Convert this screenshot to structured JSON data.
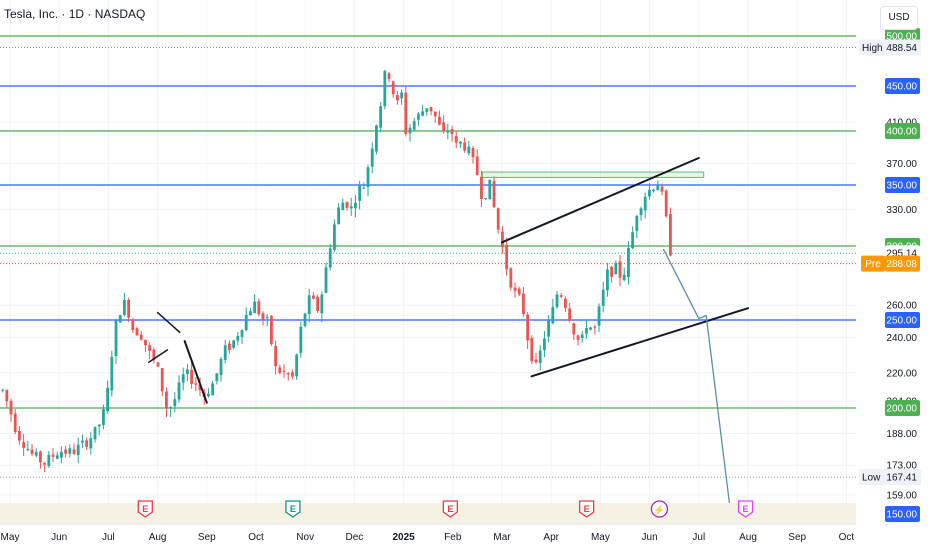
{
  "header": {
    "title": "Tesla, Inc. · 1D · NASDAQ",
    "currency": "USD"
  },
  "chart_data": {
    "type": "candlestick",
    "ylim": [
      150,
      500
    ],
    "y_ticks": [
      500.0,
      410.0,
      370.0,
      330.0,
      260.0,
      240.0,
      220.0,
      204.0,
      188.0,
      173.0,
      159.0
    ],
    "x_labels": [
      {
        "label": "May",
        "month": 0
      },
      {
        "label": "Jun",
        "month": 1
      },
      {
        "label": "Jul",
        "month": 2
      },
      {
        "label": "Aug",
        "month": 3
      },
      {
        "label": "Sep",
        "month": 4
      },
      {
        "label": "Oct",
        "month": 5
      },
      {
        "label": "Nov",
        "month": 6
      },
      {
        "label": "Dec",
        "month": 7
      },
      {
        "label": "2025",
        "month": 8
      },
      {
        "label": "Feb",
        "month": 9
      },
      {
        "label": "Mar",
        "month": 10
      },
      {
        "label": "Apr",
        "month": 11
      },
      {
        "label": "May",
        "month": 12
      },
      {
        "label": "Jun",
        "month": 13
      },
      {
        "label": "Jul",
        "month": 14
      },
      {
        "label": "Aug",
        "month": 15
      },
      {
        "label": "Sep",
        "month": 16
      },
      {
        "label": "Oct",
        "month": 17
      }
    ],
    "levels": [
      {
        "price": 500.0,
        "label": "500.00",
        "color": "#4caf50"
      },
      {
        "price": 450.0,
        "label": "450.00",
        "color": "#2962ff"
      },
      {
        "price": 400.0,
        "label": "400.00",
        "color": "#4caf50"
      },
      {
        "price": 350.0,
        "label": "350.00",
        "color": "#2962ff"
      },
      {
        "price": 300.0,
        "label": "300.00",
        "color": "#4caf50"
      },
      {
        "price": 250.0,
        "label": "250.00",
        "color": "#2962ff"
      },
      {
        "price": 200.0,
        "label": "200.00",
        "color": "#4caf50"
      },
      {
        "price": 150.0,
        "label": "150.00",
        "color": "#2962ff"
      }
    ],
    "markers": {
      "high": {
        "label": "High",
        "value": "488.54",
        "price": 488.54
      },
      "low": {
        "label": "Low",
        "value": "167.41",
        "price": 167.41
      },
      "last": {
        "value": "295.14",
        "price": 295.14,
        "color": "#26a69a"
      },
      "pre": {
        "label": "Pre",
        "value": "288.08",
        "price": 288.08,
        "color": "#ff9800"
      }
    },
    "supply_zone": {
      "from_month": 9.6,
      "to_month": 14.1,
      "top": 362,
      "bottom": 357
    },
    "channel": {
      "upper": [
        [
          10.0,
          303
        ],
        [
          14.0,
          375
        ]
      ],
      "lower": [
        [
          10.6,
          218
        ],
        [
          15.0,
          258
        ]
      ]
    },
    "mini_channels": [
      {
        "upper": [
          [
            3.0,
            255
          ],
          [
            3.45,
            243
          ]
        ],
        "lower": [
          [
            2.82,
            226
          ],
          [
            3.2,
            233
          ]
        ]
      },
      {
        "line": [
          [
            3.55,
            238
          ],
          [
            4.0,
            203
          ]
        ]
      }
    ],
    "projection": [
      [
        13.28,
        298
      ],
      [
        14.0,
        251
      ],
      [
        14.15,
        253
      ],
      [
        14.65,
        150
      ]
    ],
    "event_badges": [
      {
        "label": "E",
        "month": 2.75,
        "color": "#f23645"
      },
      {
        "label": "E",
        "month": 5.75,
        "color": "#089981"
      },
      {
        "label": "E",
        "month": 8.95,
        "color": "#f23645"
      },
      {
        "label": "E",
        "month": 11.72,
        "color": "#f23645"
      },
      {
        "label": "⚡",
        "month": 13.2,
        "color": "#9c27b0"
      },
      {
        "label": "E",
        "month": 14.95,
        "color": "#e040fb"
      }
    ],
    "price_path": [
      [
        -0.15,
        210
      ],
      [
        0.15,
        188
      ],
      [
        0.45,
        178
      ],
      [
        0.7,
        174
      ],
      [
        1.0,
        180
      ],
      [
        1.25,
        179
      ],
      [
        1.5,
        183
      ],
      [
        1.75,
        189
      ],
      [
        1.95,
        200
      ],
      [
        2.05,
        228
      ],
      [
        2.2,
        255
      ],
      [
        2.35,
        262
      ],
      [
        2.5,
        245
      ],
      [
        2.65,
        243
      ],
      [
        2.85,
        230
      ],
      [
        3.0,
        222
      ],
      [
        3.1,
        210
      ],
      [
        3.2,
        198
      ],
      [
        3.35,
        205
      ],
      [
        3.55,
        220
      ],
      [
        3.75,
        215
      ],
      [
        3.95,
        207
      ],
      [
        4.15,
        215
      ],
      [
        4.35,
        232
      ],
      [
        4.55,
        238
      ],
      [
        4.75,
        250
      ],
      [
        4.95,
        262
      ],
      [
        5.15,
        250
      ],
      [
        5.25,
        248
      ],
      [
        5.4,
        222
      ],
      [
        5.55,
        220
      ],
      [
        5.75,
        217
      ],
      [
        5.95,
        251
      ],
      [
        6.1,
        265
      ],
      [
        6.25,
        257
      ],
      [
        6.35,
        270
      ],
      [
        6.5,
        300
      ],
      [
        6.65,
        328
      ],
      [
        6.8,
        338
      ],
      [
        6.95,
        330
      ],
      [
        7.05,
        345
      ],
      [
        7.2,
        350
      ],
      [
        7.35,
        385
      ],
      [
        7.45,
        410
      ],
      [
        7.55,
        435
      ],
      [
        7.65,
        470
      ],
      [
        7.75,
        455
      ],
      [
        7.85,
        425
      ],
      [
        7.95,
        445
      ],
      [
        8.05,
        398
      ],
      [
        8.2,
        410
      ],
      [
        8.35,
        420
      ],
      [
        8.5,
        430
      ],
      [
        8.65,
        415
      ],
      [
        8.8,
        395
      ],
      [
        8.95,
        405
      ],
      [
        9.05,
        385
      ],
      [
        9.2,
        390
      ],
      [
        9.35,
        378
      ],
      [
        9.5,
        360
      ],
      [
        9.6,
        340
      ],
      [
        9.75,
        350
      ],
      [
        9.9,
        318
      ],
      [
        10.0,
        300
      ],
      [
        10.1,
        285
      ],
      [
        10.25,
        268
      ],
      [
        10.4,
        262
      ],
      [
        10.55,
        235
      ],
      [
        10.7,
        222
      ],
      [
        10.85,
        240
      ],
      [
        11.0,
        252
      ],
      [
        11.15,
        272
      ],
      [
        11.3,
        260
      ],
      [
        11.45,
        245
      ],
      [
        11.6,
        235
      ],
      [
        11.75,
        252
      ],
      [
        11.85,
        240
      ],
      [
        12.0,
        260
      ],
      [
        12.15,
        282
      ],
      [
        12.3,
        285
      ],
      [
        12.45,
        278
      ],
      [
        12.6,
        300
      ],
      [
        12.75,
        330
      ],
      [
        12.9,
        342
      ],
      [
        13.05,
        348
      ],
      [
        13.15,
        355
      ],
      [
        13.25,
        340
      ],
      [
        13.3,
        338
      ],
      [
        13.35,
        315
      ],
      [
        13.42,
        298
      ],
      [
        13.47,
        288
      ]
    ],
    "annotations": {
      "line_color": "#131722",
      "projection_color": "#5b8fa8"
    }
  }
}
